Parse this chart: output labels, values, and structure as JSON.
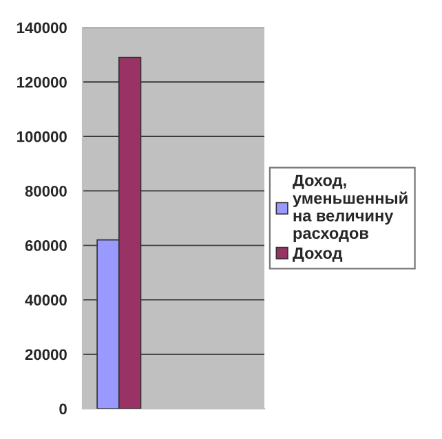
{
  "chart_data": {
    "type": "bar",
    "categories": [
      null
    ],
    "series": [
      {
        "name": "Доход, уменьшенный на величину расходов",
        "color": "#9999ff",
        "values": [
          62000
        ]
      },
      {
        "name": "Доход",
        "color": "#993366",
        "values": [
          129000
        ]
      }
    ],
    "ylim": [
      0,
      140000
    ],
    "yticks": [
      0,
      20000,
      40000,
      60000,
      80000,
      100000,
      120000,
      140000
    ],
    "grid": "y",
    "legend": "right"
  }
}
